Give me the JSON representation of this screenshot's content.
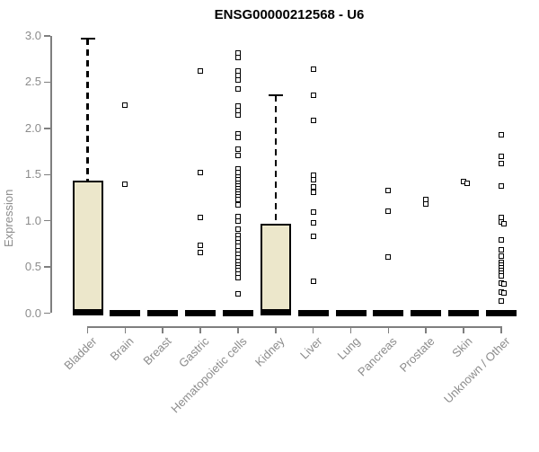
{
  "title": "ENSG00000212568 - U6",
  "chart_data": {
    "type": "box",
    "title": "ENSG00000212568 - U6",
    "xlabel": "",
    "ylabel": "Expression",
    "ylim": [
      0.0,
      3.0
    ],
    "y_ticks": [
      {
        "value": 0.0,
        "label": "0.0"
      },
      {
        "value": 0.5,
        "label": "0.5"
      },
      {
        "value": 1.0,
        "label": "1.0"
      },
      {
        "value": 1.5,
        "label": "1.5"
      },
      {
        "value": 2.0,
        "label": "2.0"
      },
      {
        "value": 2.5,
        "label": "2.5"
      },
      {
        "value": 3.0,
        "label": "3.0"
      }
    ],
    "grid": false,
    "legend_position": "none",
    "categories": [
      "Bladder",
      "Brain",
      "Breast",
      "Gastric",
      "Hematopoietic cells",
      "Kidney",
      "Liver",
      "Lung",
      "Pancreas",
      "Prostate",
      "Skin",
      "Unknown / Other"
    ],
    "series": [
      {
        "name": "Bladder",
        "q1": 0.0,
        "median": 0.01,
        "q3": 1.43,
        "whisker_low": 0.0,
        "whisker_high": 2.97,
        "outliers": []
      },
      {
        "name": "Brain",
        "q1": 0.0,
        "median": 0.0,
        "q3": 0.0,
        "whisker_low": 0.0,
        "whisker_high": 0.0,
        "outliers": [
          2.25,
          1.4
        ]
      },
      {
        "name": "Breast",
        "q1": 0.0,
        "median": 0.0,
        "q3": 0.0,
        "whisker_low": 0.0,
        "whisker_high": 0.0,
        "outliers": []
      },
      {
        "name": "Gastric",
        "q1": 0.0,
        "median": 0.0,
        "q3": 0.0,
        "whisker_low": 0.0,
        "whisker_high": 0.0,
        "outliers": [
          2.62,
          1.52,
          1.04,
          0.73,
          0.66
        ]
      },
      {
        "name": "Hematopoietic cells",
        "q1": 0.0,
        "median": 0.0,
        "q3": 0.0,
        "whisker_low": 0.0,
        "whisker_high": 0.0,
        "outliers": [
          2.82,
          2.77,
          2.62,
          2.57,
          2.52,
          2.43,
          2.24,
          2.19,
          2.14,
          1.94,
          1.9,
          1.77,
          1.71,
          1.56,
          1.52,
          1.47,
          1.44,
          1.41,
          1.38,
          1.35,
          1.32,
          1.29,
          1.26,
          1.23,
          1.17,
          1.05,
          1.0,
          0.91,
          0.84,
          0.8,
          0.76,
          0.72,
          0.68,
          0.64,
          0.6,
          0.56,
          0.52,
          0.49,
          0.46,
          0.42,
          0.38,
          0.21
        ]
      },
      {
        "name": "Kidney",
        "q1": 0.0,
        "median": 0.01,
        "q3": 0.97,
        "whisker_low": 0.0,
        "whisker_high": 2.36,
        "outliers": []
      },
      {
        "name": "Liver",
        "q1": 0.0,
        "median": 0.0,
        "q3": 0.0,
        "whisker_low": 0.0,
        "whisker_high": 0.0,
        "outliers": [
          2.64,
          2.36,
          2.09,
          1.49,
          1.44,
          1.37,
          1.31,
          1.09,
          0.98,
          0.83,
          0.35
        ]
      },
      {
        "name": "Lung",
        "q1": 0.0,
        "median": 0.0,
        "q3": 0.0,
        "whisker_low": 0.0,
        "whisker_high": 0.0,
        "outliers": []
      },
      {
        "name": "Pancreas",
        "q1": 0.0,
        "median": 0.0,
        "q3": 0.0,
        "whisker_low": 0.0,
        "whisker_high": 0.0,
        "outliers": [
          1.33,
          1.1,
          0.61
        ]
      },
      {
        "name": "Prostate",
        "q1": 0.0,
        "median": 0.0,
        "q3": 0.0,
        "whisker_low": 0.0,
        "whisker_high": 0.0,
        "outliers": [
          1.23,
          1.18
        ]
      },
      {
        "name": "Skin",
        "q1": 0.0,
        "median": 0.0,
        "q3": 0.0,
        "whisker_low": 0.0,
        "whisker_high": 0.0,
        "outliers": [
          1.42,
          1.41
        ]
      },
      {
        "name": "Unknown / Other",
        "q1": 0.0,
        "median": 0.0,
        "q3": 0.0,
        "whisker_low": 0.0,
        "whisker_high": 0.0,
        "outliers": [
          1.93,
          1.7,
          1.62,
          1.38,
          1.04,
          0.99,
          0.97,
          0.79,
          0.69,
          0.62,
          0.55,
          0.52,
          0.49,
          0.46,
          0.43,
          0.4,
          0.33,
          0.32,
          0.23,
          0.22,
          0.13
        ]
      }
    ],
    "colors": {
      "box_fill": "#ece7cb",
      "box_border": "#000000",
      "median": "#000000",
      "whisker": "#000000",
      "outlier_fill": "#ffffff",
      "outlier_border": "#000000",
      "axis": "#7f7f7f",
      "tick_label": "#8c8c8c",
      "title": "#000000",
      "background": "#ffffff"
    }
  }
}
